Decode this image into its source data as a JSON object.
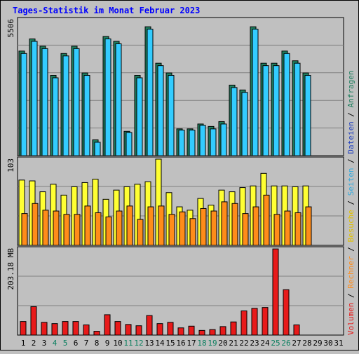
{
  "title": "Tages-Statistik im Monat Februar 2023",
  "colors": {
    "background": "#c0c0c0",
    "title": "#0000ff",
    "grid": "#808080",
    "anfragen": "#1f7f5f",
    "dateien": "#33ccff",
    "seiten": "#1f3fbf",
    "besuche": "#ffff33",
    "rechner": "#ff8c1a",
    "volumen": "#e81a1a",
    "weekend_label": "#0a7f5f",
    "weekday_label": "#000000"
  },
  "chart_data": [
    {
      "type": "bar",
      "name": "top",
      "max_label": "5506",
      "ylim": [
        0,
        5506
      ],
      "categories": [
        "1",
        "2",
        "3",
        "4",
        "5",
        "6",
        "7",
        "8",
        "9",
        "10",
        "11",
        "12",
        "13",
        "14",
        "15",
        "16",
        "17",
        "18",
        "19",
        "20",
        "21",
        "22",
        "23",
        "24",
        "25",
        "26",
        "27",
        "28",
        "29",
        "30",
        "31"
      ],
      "series": [
        {
          "name": "Anfragen",
          "values": [
            4300,
            4800,
            4500,
            3300,
            4200,
            4500,
            3400,
            650,
            4900,
            4700,
            1000,
            3300,
            5300,
            3800,
            3400,
            1100,
            1100,
            1300,
            1200,
            1400,
            2900,
            2700,
            5300,
            3800,
            3800,
            4300,
            3900,
            3400,
            0,
            0,
            0
          ]
        },
        {
          "name": "Dateien",
          "values": [
            4200,
            4700,
            4400,
            3200,
            4100,
            4400,
            3300,
            550,
            4800,
            4600,
            950,
            3200,
            5200,
            3700,
            3300,
            1050,
            1050,
            1250,
            1100,
            1300,
            2800,
            2600,
            5200,
            3700,
            3700,
            4200,
            3800,
            3300,
            0,
            0,
            0
          ]
        },
        {
          "name": "Seiten",
          "values": [
            0,
            0,
            0,
            0,
            0,
            0,
            0,
            0,
            0,
            0,
            0,
            0,
            0,
            0,
            0,
            0,
            0,
            0,
            0,
            0,
            0,
            0,
            0,
            0,
            0,
            0,
            0,
            0,
            0,
            0,
            0
          ]
        }
      ]
    },
    {
      "type": "bar",
      "name": "middle",
      "max_label": "103",
      "ylim": [
        0,
        103
      ],
      "categories": [
        "1",
        "2",
        "3",
        "4",
        "5",
        "6",
        "7",
        "8",
        "9",
        "10",
        "11",
        "12",
        "13",
        "14",
        "15",
        "16",
        "17",
        "18",
        "19",
        "20",
        "21",
        "22",
        "23",
        "24",
        "25",
        "26",
        "27",
        "28",
        "29",
        "30",
        "31"
      ],
      "series": [
        {
          "name": "Besuche",
          "values": [
            78,
            77,
            64,
            73,
            60,
            70,
            75,
            79,
            55,
            66,
            70,
            73,
            76,
            103,
            63,
            46,
            42,
            56,
            48,
            66,
            64,
            69,
            71,
            86,
            71,
            71,
            70,
            71,
            0,
            0,
            0
          ]
        },
        {
          "name": "Rechner",
          "values": [
            38,
            50,
            42,
            41,
            37,
            37,
            47,
            39,
            34,
            41,
            47,
            31,
            46,
            47,
            37,
            40,
            32,
            44,
            41,
            52,
            50,
            38,
            46,
            60,
            37,
            41,
            39,
            46,
            0,
            0,
            0
          ]
        }
      ]
    },
    {
      "type": "bar",
      "name": "bottom",
      "max_label": "203.18 MB",
      "ylim": [
        0,
        203.18
      ],
      "categories": [
        "1",
        "2",
        "3",
        "4",
        "5",
        "6",
        "7",
        "8",
        "9",
        "10",
        "11",
        "12",
        "13",
        "14",
        "15",
        "16",
        "17",
        "18",
        "19",
        "20",
        "21",
        "22",
        "23",
        "24",
        "25",
        "26",
        "27",
        "28",
        "29",
        "30",
        "31"
      ],
      "series": [
        {
          "name": "Volumen",
          "values": [
            32,
            67,
            30,
            27,
            32,
            32,
            24,
            9,
            48,
            32,
            25,
            22,
            46,
            27,
            30,
            17,
            21,
            11,
            13,
            20,
            31,
            57,
            63,
            65,
            203,
            107,
            24,
            0,
            0,
            0,
            0
          ]
        }
      ]
    }
  ],
  "day_labels": [
    {
      "text": "1",
      "weekend": false
    },
    {
      "text": "2",
      "weekend": false
    },
    {
      "text": "3",
      "weekend": false
    },
    {
      "text": "4",
      "weekend": true
    },
    {
      "text": "5",
      "weekend": true
    },
    {
      "text": "6",
      "weekend": false
    },
    {
      "text": "7",
      "weekend": false
    },
    {
      "text": "8",
      "weekend": false
    },
    {
      "text": "9",
      "weekend": false
    },
    {
      "text": "10",
      "weekend": false
    },
    {
      "text": "11",
      "weekend": true
    },
    {
      "text": "12",
      "weekend": true
    },
    {
      "text": "13",
      "weekend": false
    },
    {
      "text": "14",
      "weekend": false
    },
    {
      "text": "15",
      "weekend": false
    },
    {
      "text": "16",
      "weekend": false
    },
    {
      "text": "17",
      "weekend": false
    },
    {
      "text": "18",
      "weekend": true
    },
    {
      "text": "19",
      "weekend": true
    },
    {
      "text": "20",
      "weekend": false
    },
    {
      "text": "21",
      "weekend": false
    },
    {
      "text": "22",
      "weekend": false
    },
    {
      "text": "23",
      "weekend": false
    },
    {
      "text": "24",
      "weekend": false
    },
    {
      "text": "25",
      "weekend": true
    },
    {
      "text": "26",
      "weekend": true
    },
    {
      "text": "27",
      "weekend": false
    },
    {
      "text": "28",
      "weekend": false
    },
    {
      "text": "29",
      "weekend": false
    },
    {
      "text": "30",
      "weekend": false
    },
    {
      "text": "31",
      "weekend": false
    }
  ],
  "right_legend": [
    {
      "text": "Volumen",
      "color": "#e81a1a"
    },
    {
      "text": "/",
      "color": "#000000"
    },
    {
      "text": "Rechner",
      "color": "#ff8c1a"
    },
    {
      "text": "/",
      "color": "#000000"
    },
    {
      "text": "Besuche",
      "color": "#e0c000"
    },
    {
      "text": "/",
      "color": "#000000"
    },
    {
      "text": "Seiten",
      "color": "#33aadd"
    },
    {
      "text": "/",
      "color": "#000000"
    },
    {
      "text": "Dateien",
      "color": "#1f3fbf"
    },
    {
      "text": "/",
      "color": "#000000"
    },
    {
      "text": "Anfragen",
      "color": "#1f7f5f"
    }
  ]
}
